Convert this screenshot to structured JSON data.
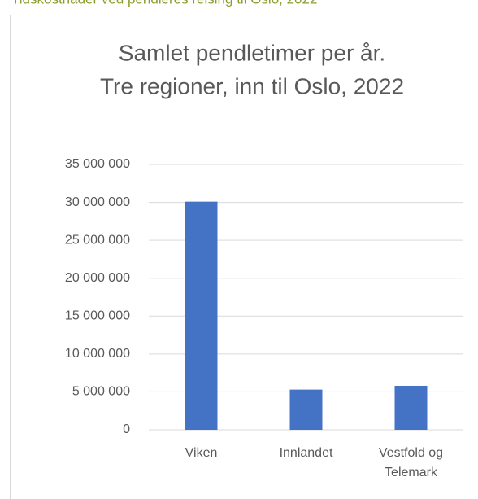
{
  "header": "Tidskostnader ved pendleres reising til Oslo, 2022",
  "chart_data": {
    "type": "bar",
    "title": [
      "Samlet pendletimer per år.",
      "Tre regioner, inn til Oslo, 2022"
    ],
    "categories": [
      "Viken",
      "Innlandet",
      "Vestfold og Telemark"
    ],
    "values": [
      30100000,
      5300000,
      5800000
    ],
    "color": "#4472c4",
    "ylim": [
      0,
      35000000
    ],
    "yticks": [
      0,
      {
        "value": 5000000,
        "label": "5 000 000"
      },
      {
        "value": 10000000,
        "label": "10 000 000"
      },
      {
        "value": 15000000,
        "label": "15 000 000"
      },
      {
        "value": 20000000,
        "label": "20 000 000"
      },
      {
        "value": 25000000,
        "label": "25 000 000"
      },
      {
        "value": 30000000,
        "label": "30 000 000"
      },
      {
        "value": 35000000,
        "label": "35 000 000"
      }
    ],
    "grid": true
  }
}
